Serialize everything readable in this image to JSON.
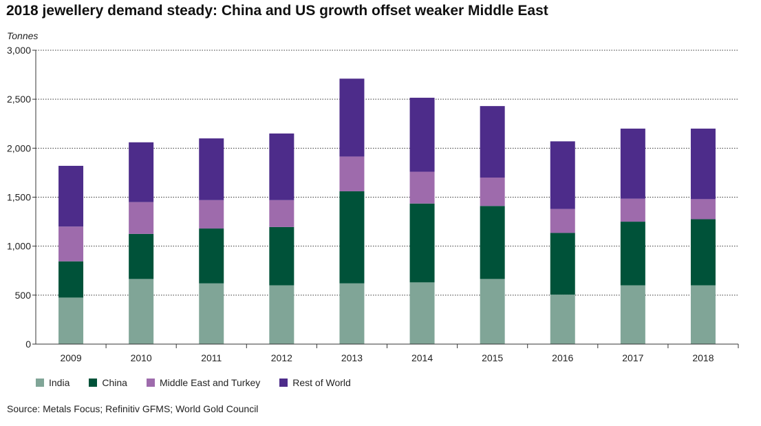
{
  "title": "2018 jewellery demand steady: China and US growth offset weaker Middle East",
  "source": "Source: Metals Focus; Refinitiv GFMS; World Gold Council",
  "chart_data": {
    "type": "bar",
    "stacked": true,
    "title": "2018 jewellery demand steady: China and US growth offset weaker Middle East",
    "xlabel": "",
    "ylabel": "Tonnes",
    "ylim": [
      0,
      3000
    ],
    "yticks": [
      0,
      500,
      1000,
      1500,
      2000,
      2500,
      3000
    ],
    "ytick_labels": [
      "0",
      "500",
      "1,000",
      "1,500",
      "2,000",
      "2,500",
      "3,000"
    ],
    "grid": true,
    "legend_position": "bottom-left",
    "categories": [
      "2009",
      "2010",
      "2011",
      "2012",
      "2013",
      "2014",
      "2015",
      "2016",
      "2017",
      "2018"
    ],
    "series": [
      {
        "name": "India",
        "color": "#80a597",
        "values": [
          475,
          665,
          620,
          600,
          620,
          630,
          665,
          505,
          600,
          600
        ]
      },
      {
        "name": "China",
        "color": "#005239",
        "values": [
          370,
          460,
          560,
          595,
          940,
          805,
          745,
          630,
          650,
          675
        ]
      },
      {
        "name": "Middle East and Turkey",
        "color": "#9e6bac",
        "values": [
          355,
          325,
          290,
          275,
          355,
          325,
          290,
          245,
          235,
          205
        ]
      },
      {
        "name": "Rest of World",
        "color": "#4d2c8a",
        "values": [
          620,
          610,
          630,
          680,
          795,
          755,
          730,
          690,
          715,
          720
        ]
      }
    ]
  }
}
